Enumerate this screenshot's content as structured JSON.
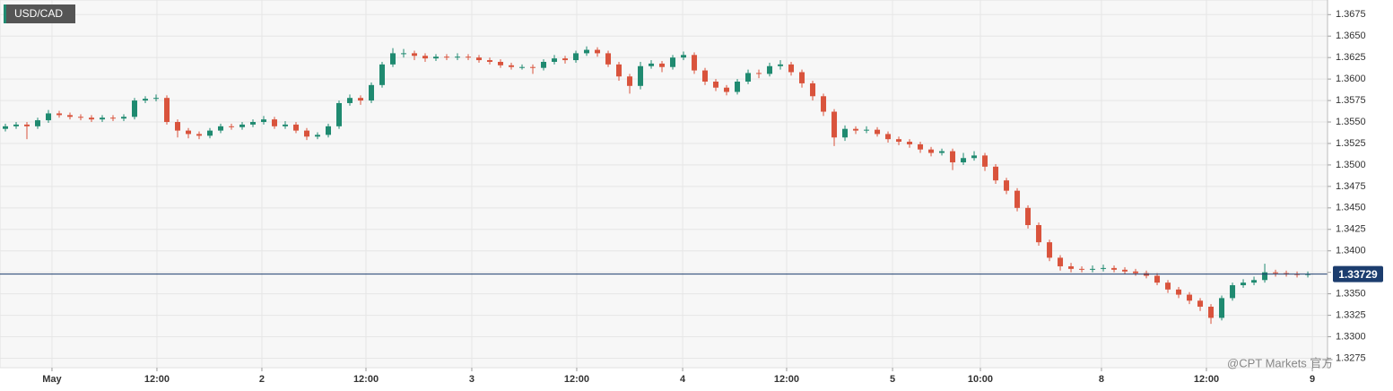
{
  "chart_data": {
    "type": "candlestick",
    "title": "USD/CAD",
    "watermark": "@CPT Markets 官方",
    "up_color": "#1f8a70",
    "down_color": "#d9533c",
    "grid": true,
    "ylim": [
      1.3264,
      1.3692
    ],
    "xlim": [
      -0.5,
      122.83
    ],
    "yticks": [
      1.3675,
      {
        "value": 1.365,
        "label": "1.3650"
      },
      1.3625,
      {
        "value": 1.36,
        "label": "1.3600"
      },
      1.3575,
      {
        "value": 1.355,
        "label": "1.3550"
      },
      1.3525,
      {
        "value": 1.35,
        "label": "1.3500"
      },
      1.3475,
      {
        "value": 1.345,
        "label": "1.3450"
      },
      1.3425,
      {
        "value": 1.34,
        "label": "1.3400"
      },
      1.3375,
      {
        "value": 1.335,
        "label": "1.3350"
      },
      1.3325,
      {
        "value": 1.33,
        "label": "1.3300"
      },
      1.3275
    ],
    "xticks": [
      {
        "value": 4.33,
        "label": "May"
      },
      {
        "value": 14.08,
        "label": "12:00"
      },
      {
        "value": 23.83,
        "label": "2"
      },
      {
        "value": 33.5,
        "label": "12:00"
      },
      {
        "value": 43.33,
        "label": "3"
      },
      {
        "value": 53.08,
        "label": "12:00"
      },
      {
        "value": 62.92,
        "label": "4"
      },
      {
        "value": 72.58,
        "label": "12:00"
      },
      {
        "value": 82.42,
        "label": "5"
      },
      {
        "value": 90.58,
        "label": "10:00"
      },
      {
        "value": 101.83,
        "label": "8"
      },
      {
        "value": 111.58,
        "label": "12:00"
      },
      {
        "value": 121.42,
        "label": "9"
      }
    ],
    "last_price": 1.33729,
    "last_price_color": "#1c3d6e",
    "x": [
      0,
      1,
      2,
      3,
      4,
      5,
      6,
      7,
      8,
      9,
      10,
      11,
      12,
      13,
      14,
      15,
      16,
      17,
      18,
      19,
      20,
      21,
      22,
      23,
      24,
      25,
      26,
      27,
      28,
      29,
      30,
      31,
      32,
      33,
      34,
      35,
      36,
      37,
      38,
      39,
      40,
      41,
      42,
      43,
      44,
      45,
      46,
      47,
      48,
      49,
      50,
      51,
      52,
      53,
      54,
      55,
      56,
      57,
      58,
      59,
      60,
      61,
      62,
      63,
      64,
      65,
      66,
      67,
      68,
      69,
      70,
      71,
      72,
      73,
      74,
      75,
      76,
      77,
      78,
      79,
      80,
      81,
      82,
      83,
      84,
      85,
      86,
      87,
      88,
      89,
      90,
      91,
      92,
      93,
      94,
      95,
      96,
      97,
      98,
      99,
      100,
      101,
      102,
      103,
      104,
      105,
      106,
      107,
      108,
      109,
      110,
      111,
      112,
      113,
      114,
      115,
      116,
      117,
      118,
      119,
      120,
      121
    ],
    "ohlc": [
      [
        1.3542,
        1.3548,
        1.3539,
        1.3545
      ],
      [
        1.3545,
        1.355,
        1.3542,
        1.3547
      ],
      [
        1.3547,
        1.355,
        1.353,
        1.3545
      ],
      [
        1.3545,
        1.3555,
        1.3542,
        1.3552
      ],
      [
        1.3552,
        1.3564,
        1.3549,
        1.356
      ],
      [
        1.356,
        1.3563,
        1.3555,
        1.3558
      ],
      [
        1.3558,
        1.3561,
        1.3553,
        1.3556
      ],
      [
        1.3556,
        1.3559,
        1.3552,
        1.3555
      ],
      [
        1.3555,
        1.3558,
        1.355,
        1.3553
      ],
      [
        1.3553,
        1.3558,
        1.355,
        1.3555
      ],
      [
        1.3555,
        1.3558,
        1.3551,
        1.3554
      ],
      [
        1.3554,
        1.3559,
        1.3551,
        1.3556
      ],
      [
        1.3556,
        1.3578,
        1.3553,
        1.3575
      ],
      [
        1.3575,
        1.358,
        1.3572,
        1.3577
      ],
      [
        1.3577,
        1.3582,
        1.3574,
        1.3578
      ],
      [
        1.3578,
        1.3581,
        1.3547,
        1.355
      ],
      [
        1.355,
        1.3553,
        1.3532,
        1.354
      ],
      [
        1.354,
        1.3543,
        1.3531,
        1.3536
      ],
      [
        1.3536,
        1.3539,
        1.353,
        1.3534
      ],
      [
        1.3534,
        1.3543,
        1.3531,
        1.354
      ],
      [
        1.354,
        1.3548,
        1.3537,
        1.3545
      ],
      [
        1.3545,
        1.3548,
        1.3541,
        1.3544
      ],
      [
        1.3544,
        1.355,
        1.3541,
        1.3547
      ],
      [
        1.3547,
        1.3553,
        1.3544,
        1.355
      ],
      [
        1.355,
        1.3557,
        1.3547,
        1.3553
      ],
      [
        1.3553,
        1.3556,
        1.3542,
        1.3545
      ],
      [
        1.3545,
        1.3551,
        1.3542,
        1.3547
      ],
      [
        1.3547,
        1.355,
        1.3537,
        1.354
      ],
      [
        1.354,
        1.3543,
        1.3529,
        1.3533
      ],
      [
        1.3533,
        1.3538,
        1.353,
        1.3535
      ],
      [
        1.3535,
        1.3548,
        1.3532,
        1.3545
      ],
      [
        1.3545,
        1.3575,
        1.3542,
        1.3572
      ],
      [
        1.3572,
        1.3582,
        1.3569,
        1.3578
      ],
      [
        1.3578,
        1.3581,
        1.357,
        1.3575
      ],
      [
        1.3575,
        1.3596,
        1.3572,
        1.3593
      ],
      [
        1.3593,
        1.362,
        1.359,
        1.3617
      ],
      [
        1.3617,
        1.3636,
        1.3614,
        1.363
      ],
      [
        1.363,
        1.3635,
        1.3625,
        1.363
      ],
      [
        1.363,
        1.3633,
        1.3622,
        1.3627
      ],
      [
        1.3627,
        1.363,
        1.362,
        1.3624
      ],
      [
        1.3624,
        1.3629,
        1.3621,
        1.3626
      ],
      [
        1.3626,
        1.3629,
        1.3622,
        1.3625
      ],
      [
        1.3625,
        1.363,
        1.3622,
        1.3626
      ],
      [
        1.3626,
        1.3629,
        1.3622,
        1.3625
      ],
      [
        1.3625,
        1.3628,
        1.3619,
        1.3622
      ],
      [
        1.3622,
        1.3625,
        1.3617,
        1.362
      ],
      [
        1.362,
        1.3623,
        1.3613,
        1.3616
      ],
      [
        1.3616,
        1.3619,
        1.3611,
        1.3614
      ],
      [
        1.3614,
        1.3617,
        1.3611,
        1.3614
      ],
      [
        1.3614,
        1.3617,
        1.3606,
        1.3613
      ],
      [
        1.3613,
        1.3623,
        1.361,
        1.362
      ],
      [
        1.362,
        1.3628,
        1.3617,
        1.3624
      ],
      [
        1.3624,
        1.3627,
        1.3618,
        1.3622
      ],
      [
        1.3622,
        1.3633,
        1.3619,
        1.363
      ],
      [
        1.363,
        1.3638,
        1.3627,
        1.3634
      ],
      [
        1.3634,
        1.3637,
        1.3626,
        1.363
      ],
      [
        1.363,
        1.3633,
        1.3614,
        1.3617
      ],
      [
        1.3617,
        1.362,
        1.3598,
        1.3603
      ],
      [
        1.3603,
        1.3606,
        1.3583,
        1.3592
      ],
      [
        1.3592,
        1.362,
        1.3588,
        1.3615
      ],
      [
        1.3615,
        1.3622,
        1.3612,
        1.3618
      ],
      [
        1.3618,
        1.3621,
        1.3608,
        1.3614
      ],
      [
        1.3614,
        1.3628,
        1.3611,
        1.3625
      ],
      [
        1.3625,
        1.3632,
        1.3622,
        1.3628
      ],
      [
        1.3628,
        1.3631,
        1.3606,
        1.361
      ],
      [
        1.361,
        1.3613,
        1.3593,
        1.3597
      ],
      [
        1.3597,
        1.36,
        1.3586,
        1.359
      ],
      [
        1.359,
        1.3593,
        1.3581,
        1.3585
      ],
      [
        1.3585,
        1.36,
        1.3582,
        1.3597
      ],
      [
        1.3597,
        1.3611,
        1.3594,
        1.3607
      ],
      [
        1.3607,
        1.3611,
        1.3601,
        1.3606
      ],
      [
        1.3606,
        1.3619,
        1.3603,
        1.3615
      ],
      [
        1.3615,
        1.3622,
        1.3611,
        1.3617
      ],
      [
        1.3617,
        1.362,
        1.3604,
        1.3608
      ],
      [
        1.3608,
        1.3611,
        1.359,
        1.3595
      ],
      [
        1.3595,
        1.3598,
        1.3575,
        1.358
      ],
      [
        1.358,
        1.3583,
        1.3557,
        1.3562
      ],
      [
        1.3562,
        1.3565,
        1.3522,
        1.3532
      ],
      [
        1.3532,
        1.3546,
        1.3528,
        1.3542
      ],
      [
        1.3542,
        1.3545,
        1.3536,
        1.354
      ],
      [
        1.354,
        1.3545,
        1.3537,
        1.3541
      ],
      [
        1.3541,
        1.3544,
        1.3533,
        1.3536
      ],
      [
        1.3536,
        1.3539,
        1.3526,
        1.353
      ],
      [
        1.353,
        1.3533,
        1.3523,
        1.3527
      ],
      [
        1.3527,
        1.353,
        1.352,
        1.3524
      ],
      [
        1.3524,
        1.3527,
        1.3514,
        1.3518
      ],
      [
        1.3518,
        1.3521,
        1.351,
        1.3514
      ],
      [
        1.3514,
        1.3519,
        1.3511,
        1.3516
      ],
      [
        1.3516,
        1.3519,
        1.3494,
        1.3503
      ],
      [
        1.3503,
        1.3514,
        1.35,
        1.3508
      ],
      [
        1.3508,
        1.3516,
        1.3505,
        1.3511
      ],
      [
        1.3511,
        1.3514,
        1.3493,
        1.3498
      ],
      [
        1.3498,
        1.3501,
        1.3478,
        1.3482
      ],
      [
        1.3482,
        1.3485,
        1.3466,
        1.347
      ],
      [
        1.347,
        1.3473,
        1.3446,
        1.345
      ],
      [
        1.345,
        1.3453,
        1.3426,
        1.343
      ],
      [
        1.343,
        1.3433,
        1.3406,
        1.341
      ],
      [
        1.341,
        1.3413,
        1.3388,
        1.3392
      ],
      [
        1.3392,
        1.3395,
        1.3377,
        1.3382
      ],
      [
        1.3382,
        1.3386,
        1.3375,
        1.3379
      ],
      [
        1.3379,
        1.3382,
        1.3375,
        1.3378
      ],
      [
        1.3378,
        1.3383,
        1.3375,
        1.3379
      ],
      [
        1.3379,
        1.3384,
        1.3376,
        1.338
      ],
      [
        1.338,
        1.3383,
        1.3375,
        1.3378
      ],
      [
        1.3378,
        1.3381,
        1.3373,
        1.3376
      ],
      [
        1.3376,
        1.3379,
        1.3371,
        1.3374
      ],
      [
        1.3374,
        1.3377,
        1.3368,
        1.3371
      ],
      [
        1.3371,
        1.3374,
        1.336,
        1.3363
      ],
      [
        1.3363,
        1.3366,
        1.3351,
        1.3355
      ],
      [
        1.3355,
        1.3358,
        1.3345,
        1.3349
      ],
      [
        1.3349,
        1.3352,
        1.3338,
        1.3342
      ],
      [
        1.3342,
        1.3345,
        1.333,
        1.3335
      ],
      [
        1.3335,
        1.3338,
        1.3315,
        1.3322
      ],
      [
        1.3322,
        1.3348,
        1.3319,
        1.3345
      ],
      [
        1.3345,
        1.3363,
        1.3342,
        1.336
      ],
      [
        1.336,
        1.3367,
        1.3357,
        1.3363
      ],
      [
        1.3363,
        1.337,
        1.336,
        1.3366
      ],
      [
        1.3366,
        1.3385,
        1.3363,
        1.3375
      ],
      [
        1.3375,
        1.3378,
        1.337,
        1.3374
      ],
      [
        1.3374,
        1.3377,
        1.337,
        1.3373
      ],
      [
        1.3373,
        1.3376,
        1.3369,
        1.3372
      ],
      [
        1.3372,
        1.3376,
        1.3369,
        1.3373
      ]
    ]
  }
}
